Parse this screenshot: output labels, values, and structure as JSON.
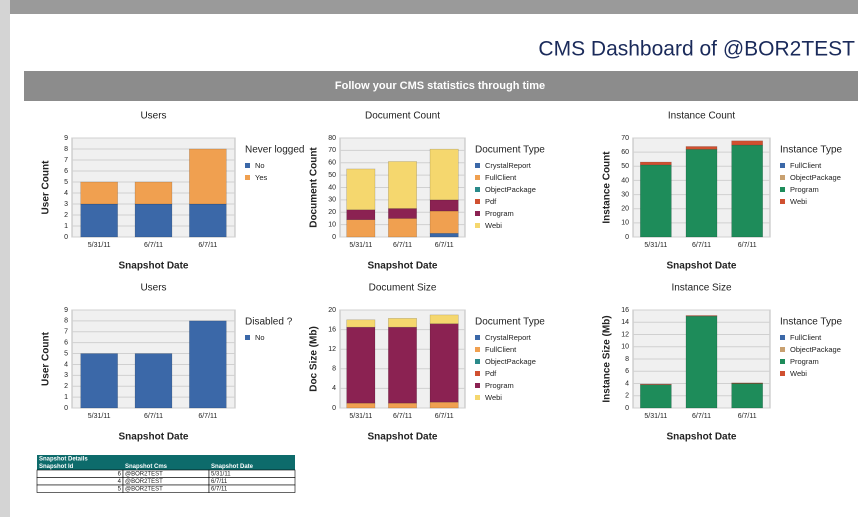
{
  "header": {
    "title": "CMS Dashboard of @BOR2TEST",
    "banner": "Follow your CMS statistics through time"
  },
  "chart_data": [
    {
      "type": "bar",
      "stacked": true,
      "title": "Users",
      "x_label": "Snapshot Date",
      "y_label": "User Count",
      "legend_title": "Never logged",
      "categories": [
        "5/31/11",
        "6/7/11",
        "6/7/11"
      ],
      "series": [
        {
          "name": "No",
          "color": "#3b68a8",
          "values": [
            3,
            3,
            3
          ]
        },
        {
          "name": "Yes",
          "color": "#f0a050",
          "values": [
            2,
            2,
            5
          ]
        }
      ],
      "ylim": [
        0,
        9
      ],
      "yticks": [
        0,
        1,
        2,
        3,
        4,
        5,
        6,
        7,
        8,
        9
      ]
    },
    {
      "type": "bar",
      "stacked": true,
      "title": "Document Count",
      "x_label": "Snapshot Date",
      "y_label": "Document Count",
      "legend_title": "Document Type",
      "categories": [
        "5/31/11",
        "6/7/11",
        "6/7/11"
      ],
      "series": [
        {
          "name": "CrystalReport",
          "color": "#3b68a8",
          "values": [
            0,
            0,
            3
          ]
        },
        {
          "name": "FullClient",
          "color": "#f0a050",
          "values": [
            14,
            15,
            18
          ]
        },
        {
          "name": "ObjectPackage",
          "color": "#2a8a8a",
          "values": [
            0,
            0,
            0
          ]
        },
        {
          "name": "Pdf",
          "color": "#d05030",
          "values": [
            0,
            0,
            0
          ]
        },
        {
          "name": "Program",
          "color": "#8b2252",
          "values": [
            8,
            8,
            9
          ]
        },
        {
          "name": "Webi",
          "color": "#f5d76e",
          "values": [
            33,
            38,
            41
          ]
        }
      ],
      "ylim": [
        0,
        80
      ],
      "yticks": [
        0,
        10,
        20,
        30,
        40,
        50,
        60,
        70,
        80
      ]
    },
    {
      "type": "bar",
      "stacked": true,
      "title": "Instance Count",
      "x_label": "Snapshot Date",
      "y_label": "Instance Count",
      "legend_title": "Instance Type",
      "categories": [
        "5/31/11",
        "6/7/11",
        "6/7/11"
      ],
      "series": [
        {
          "name": "FullClient",
          "color": "#3b68a8",
          "values": [
            0,
            0,
            0
          ]
        },
        {
          "name": "ObjectPackage",
          "color": "#c8a070",
          "values": [
            0,
            0,
            0
          ]
        },
        {
          "name": "Program",
          "color": "#1e8c5a",
          "values": [
            51,
            62,
            65
          ]
        },
        {
          "name": "Webi",
          "color": "#d05030",
          "values": [
            2,
            2,
            3
          ]
        }
      ],
      "ylim": [
        0,
        70
      ],
      "yticks": [
        0,
        10,
        20,
        30,
        40,
        50,
        60,
        70
      ]
    },
    {
      "type": "bar",
      "stacked": true,
      "title": "Users",
      "x_label": "Snapshot Date",
      "y_label": "User Count",
      "legend_title": "Disabled ?",
      "categories": [
        "5/31/11",
        "6/7/11",
        "6/7/11"
      ],
      "series": [
        {
          "name": "No",
          "color": "#3b68a8",
          "values": [
            5,
            5,
            8
          ]
        }
      ],
      "ylim": [
        0,
        9
      ],
      "yticks": [
        0,
        1,
        2,
        3,
        4,
        5,
        6,
        7,
        8,
        9
      ]
    },
    {
      "type": "bar",
      "stacked": true,
      "title": "Document Size",
      "x_label": "Snapshot Date",
      "y_label": "Doc Size (Mb)",
      "legend_title": "Document Type",
      "categories": [
        "5/31/11",
        "6/7/11",
        "6/7/11"
      ],
      "series": [
        {
          "name": "CrystalReport",
          "color": "#3b68a8",
          "values": [
            0,
            0,
            0
          ]
        },
        {
          "name": "FullClient",
          "color": "#f0a050",
          "values": [
            1,
            1,
            1.2
          ]
        },
        {
          "name": "ObjectPackage",
          "color": "#2a8a8a",
          "values": [
            0,
            0,
            0
          ]
        },
        {
          "name": "Pdf",
          "color": "#d05030",
          "values": [
            0,
            0,
            0
          ]
        },
        {
          "name": "Program",
          "color": "#8b2252",
          "values": [
            15.5,
            15.5,
            16
          ]
        },
        {
          "name": "Webi",
          "color": "#f5d76e",
          "values": [
            1.5,
            1.8,
            1.8
          ]
        }
      ],
      "ylim": [
        0,
        20
      ],
      "yticks": [
        0,
        4,
        8,
        12,
        16,
        20
      ]
    },
    {
      "type": "bar",
      "stacked": true,
      "title": "Instance Size",
      "x_label": "Snapshot Date",
      "y_label": "Instance Size (Mb)",
      "legend_title": "Instance Type",
      "categories": [
        "5/31/11",
        "6/7/11",
        "6/7/11"
      ],
      "series": [
        {
          "name": "FullClient",
          "color": "#3b68a8",
          "values": [
            0,
            0,
            0
          ]
        },
        {
          "name": "ObjectPackage",
          "color": "#c8a070",
          "values": [
            0,
            0,
            0
          ]
        },
        {
          "name": "Program",
          "color": "#1e8c5a",
          "values": [
            3.8,
            15,
            4
          ]
        },
        {
          "name": "Webi",
          "color": "#d05030",
          "values": [
            0.1,
            0.1,
            0.1
          ]
        }
      ],
      "ylim": [
        0,
        16
      ],
      "yticks": [
        0,
        2,
        4,
        6,
        8,
        10,
        12,
        14,
        16
      ]
    }
  ],
  "table": {
    "title": "Snapshot Details",
    "columns": [
      "Snapshot Id",
      "Snapshot Cms",
      "Snapshot Date"
    ],
    "rows": [
      [
        "6",
        "@BOR2TEST",
        "5/31/11"
      ],
      [
        "4",
        "@BOR2TEST",
        "6/7/11"
      ],
      [
        "5",
        "@BOR2TEST",
        "6/7/11"
      ]
    ]
  }
}
